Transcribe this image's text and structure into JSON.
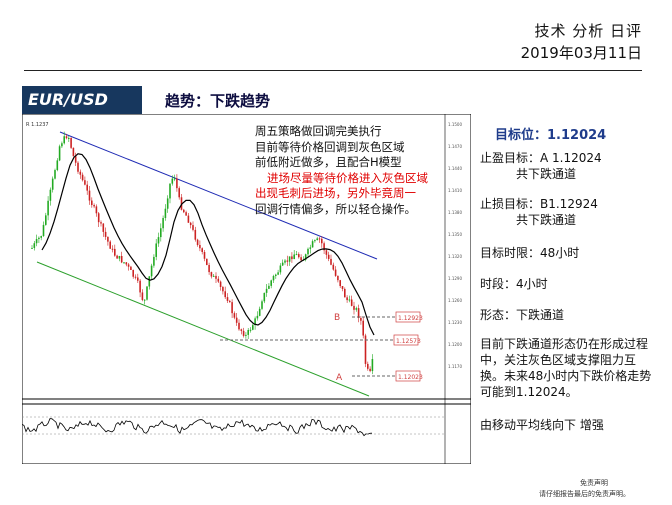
{
  "header": {
    "title": "技术 分析 日评",
    "date": "2019年03月11日"
  },
  "banner": {
    "pair": "EUR/USD",
    "trend": "趋势：下跌趋势",
    "color": "#17375e"
  },
  "chart": {
    "watermark": "R 1.1237",
    "note_lines": [
      "周五策略做回调完美执行",
      "目前等待价格回调到灰色区域",
      "前低附近做多，且配合H模型"
    ],
    "note_red_lines": [
      "进场尽量等待价格进入灰色区域",
      "出现毛刺后进场，另外毕竟周一"
    ],
    "note_tail": "回调行情偏多，所以轻仓操作。",
    "label_b": "B",
    "label_a": "A",
    "level_b": "1.12923",
    "level_mid": "1.12573",
    "level_a": "1.12023",
    "price_ticks": [
      "1.1500",
      "1.1470",
      "1.1440",
      "1.1410",
      "1.1380",
      "1.1350",
      "1.1320",
      "1.1290",
      "1.1260",
      "1.1230",
      "1.1200",
      "1.1170"
    ]
  },
  "side": {
    "target_label": "目标位：1.12024",
    "tp": "止盈目标：A 1.12024",
    "tp2": "共下跌通道",
    "sl": "止损目标：B1.12924",
    "sl2": "共下跌通道",
    "horizon": "目标时限：48小时",
    "timeframe": "时段：4小时",
    "pattern": "形态：下跌通道",
    "analysis": "目前下跌通道形态仍在形成过程中，关注灰色区域支撑阻力互换。未来48小时内下跌价格走势可能到1.12024。",
    "ma": "由移动平均线向下 增强"
  },
  "footer": {
    "line1": "免责声明",
    "line2": "请仔细报告最后的免责声明。"
  }
}
